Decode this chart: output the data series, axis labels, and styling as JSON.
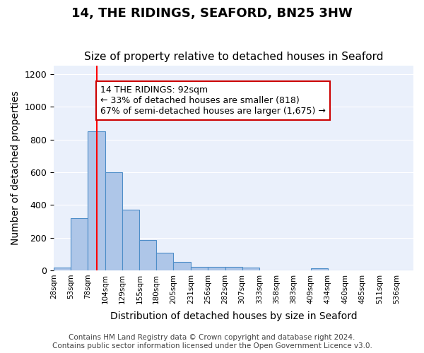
{
  "title": "14, THE RIDINGS, SEAFORD, BN25 3HW",
  "subtitle": "Size of property relative to detached houses in Seaford",
  "xlabel": "Distribution of detached houses by size in Seaford",
  "ylabel": "Number of detached properties",
  "bins": [
    28,
    53,
    78,
    104,
    129,
    155,
    180,
    205,
    231,
    256,
    282,
    307,
    333,
    358,
    383,
    409,
    434,
    460,
    485,
    511,
    536
  ],
  "counts": [
    15,
    320,
    850,
    600,
    370,
    185,
    107,
    50,
    22,
    22,
    20,
    15,
    0,
    0,
    0,
    12,
    0,
    0,
    0,
    0,
    0
  ],
  "bar_color": "#aec6e8",
  "bar_edge_color": "#4e8ec8",
  "red_line_x": 92,
  "annotation_text": "14 THE RIDINGS: 92sqm\n← 33% of detached houses are smaller (818)\n67% of semi-detached houses are larger (1,675) →",
  "annotation_box_color": "#ffffff",
  "annotation_box_edge_color": "#cc0000",
  "ylim": [
    0,
    1250
  ],
  "yticks": [
    0,
    200,
    400,
    600,
    800,
    1000,
    1200
  ],
  "background_color": "#eaf0fb",
  "footer_text": "Contains HM Land Registry data © Crown copyright and database right 2024.\nContains public sector information licensed under the Open Government Licence v3.0.",
  "title_fontsize": 13,
  "subtitle_fontsize": 11,
  "xlabel_fontsize": 10,
  "ylabel_fontsize": 10,
  "annotation_fontsize": 9,
  "footer_fontsize": 7.5
}
